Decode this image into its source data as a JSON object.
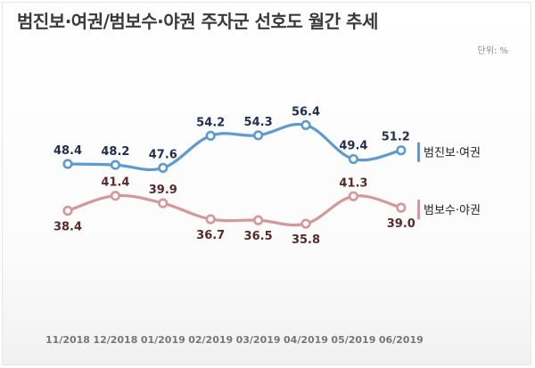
{
  "title": "범진보·여권/범보수·야권 주자군 선호도 월간 추세",
  "unit": "단위: %",
  "chart_data": {
    "type": "line",
    "title": "범진보·여권/범보수·야권 주자군 선호도 월간 추세",
    "xlabel": "",
    "ylabel": "",
    "unit": "단위: %",
    "grid": false,
    "legend": "right",
    "categories": [
      "11/2018",
      "12/2018",
      "01/2019",
      "02/2019",
      "03/2019",
      "04/2019",
      "05/2019",
      "06/2019"
    ],
    "series": [
      {
        "name": "범진보·여권",
        "color": "#5b9bd5",
        "label_color": "#1f2f4d",
        "values": [
          48.4,
          48.2,
          47.6,
          54.2,
          54.3,
          56.4,
          49.4,
          51.2
        ]
      },
      {
        "name": "범보수·야권",
        "color": "#d6979b",
        "label_color": "#5a2a2a",
        "values": [
          38.4,
          41.4,
          39.9,
          36.7,
          36.5,
          35.8,
          41.3,
          39.0
        ]
      }
    ]
  }
}
